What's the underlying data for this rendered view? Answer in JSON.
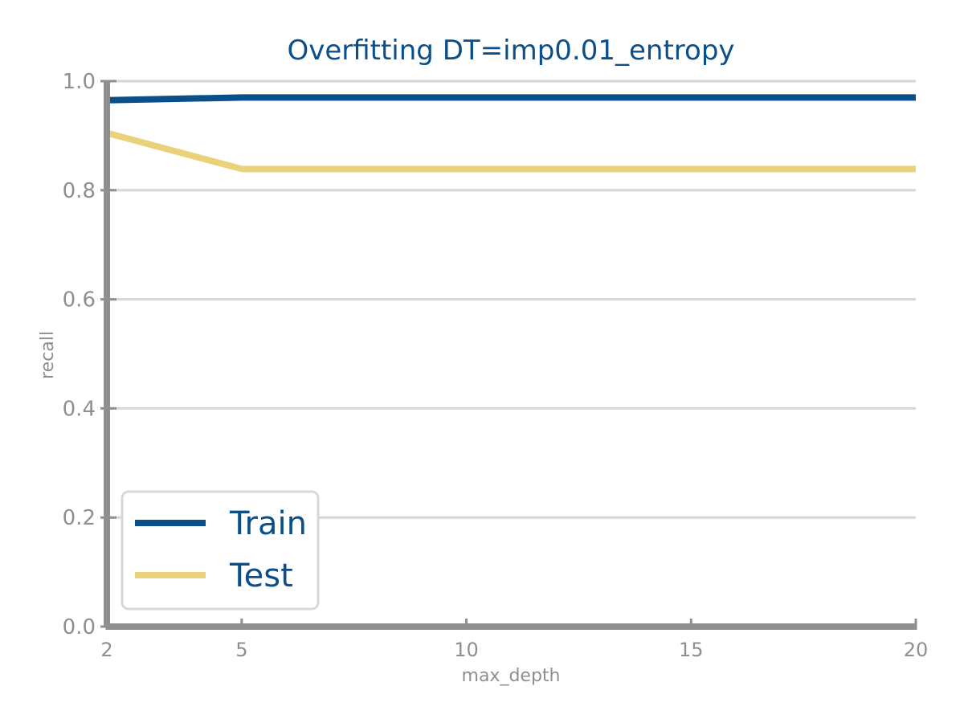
{
  "chart_data": {
    "type": "line",
    "title": "Overfitting DT=imp0.01_entropy",
    "xlabel": "max_depth",
    "ylabel": "recall",
    "x": [
      2,
      5,
      10,
      15,
      20
    ],
    "xlim": [
      2,
      20
    ],
    "ylim": [
      0.0,
      1.0
    ],
    "xticks": [
      2,
      5,
      10,
      15,
      20
    ],
    "yticks": [
      0.0,
      0.2,
      0.4,
      0.6,
      0.8,
      1.0
    ],
    "ytick_labels": [
      "0.0",
      "0.2",
      "0.4",
      "0.6",
      "0.8",
      "1.0"
    ],
    "grid": "horizontal",
    "legend_position": "bottom-left",
    "series": [
      {
        "name": "Train",
        "color": "#0b4f8a",
        "values": [
          0.965,
          0.97,
          0.97,
          0.97,
          0.97
        ]
      },
      {
        "name": "Test",
        "color": "#e9d27a",
        "values": [
          0.905,
          0.839,
          0.839,
          0.839,
          0.839
        ]
      }
    ]
  }
}
